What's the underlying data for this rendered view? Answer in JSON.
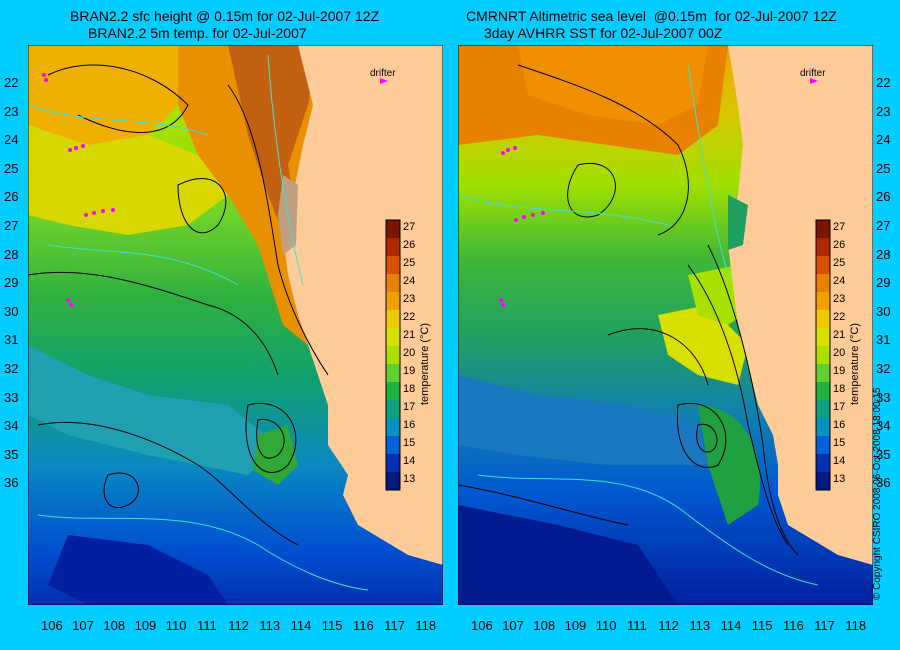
{
  "left_panel": {
    "title_line1": "BRAN2.2 sfc height @ 0.15m for 02-Jul-2007 12Z",
    "title_line2": "BRAN2.2 5m temp. for 02-Jul-2007",
    "drifter_label": "drifter"
  },
  "right_panel": {
    "title_line1": "CMRNRT Altimetric sea level  @0.15m  for 02-Jul-2007 12Z",
    "title_line2": "3day AVHRR SST for 02-Jul-2007 00Z",
    "drifter_label": "drifter"
  },
  "lat_labels": [
    "22",
    "23",
    "24",
    "25",
    "26",
    "27",
    "28",
    "29",
    "30",
    "31",
    "32",
    "33",
    "34",
    "35",
    "36"
  ],
  "lon_labels": [
    "106",
    "107",
    "108",
    "109",
    "110",
    "111",
    "112",
    "113",
    "114",
    "115",
    "116",
    "117",
    "118"
  ],
  "colorbar": {
    "title": "temperature (°C)",
    "ticks": [
      "27",
      "26",
      "25",
      "24",
      "23",
      "22",
      "21",
      "20",
      "19",
      "18",
      "17",
      "16",
      "15",
      "14",
      "13"
    ],
    "colors": [
      "#7a1500",
      "#b02800",
      "#d85000",
      "#e88000",
      "#f0a000",
      "#f0c800",
      "#d8e000",
      "#a8e000",
      "#60d030",
      "#20b040",
      "#10a080",
      "#0890c0",
      "#0060d8",
      "#0030b0",
      "#001880"
    ]
  },
  "credit": "© Copyright CSIRO 2008     06-Oct-2008 18:00:15",
  "land_color": "#ffcc99"
}
